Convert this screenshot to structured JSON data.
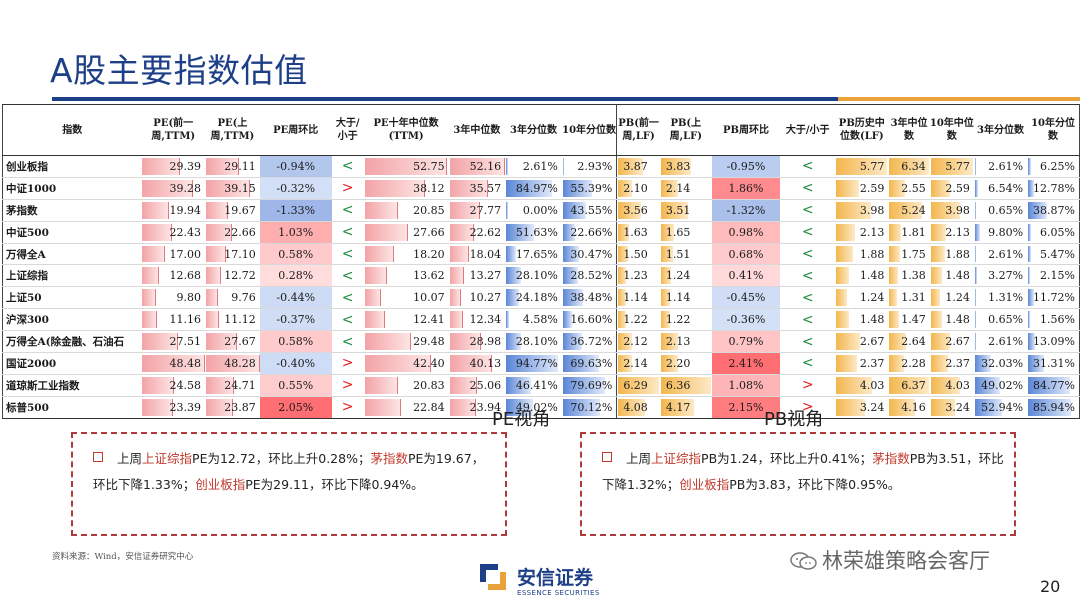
{
  "title": "A股主要指数估值",
  "headers": {
    "name": "指数",
    "pe_prev": "PE(前一周,TTM)",
    "pe_last": "PE(上周,TTM)",
    "pe_chg": "PE周环比",
    "pe_cmp": "大于/小于",
    "pe_10y": "PE十年中位数(TTM)",
    "pe_3y_med": "3年中位数",
    "pe_3y_pct": "3年分位数",
    "pe_10y_pct": "10年分位数",
    "pb_prev": "PB(前一周,LF)",
    "pb_last": "PB(上周,LF)",
    "pb_chg": "PB周环比",
    "pb_cmp": "大于/小于",
    "pb_hist": "PB历史中位数(LF)",
    "pb_3y_med": "3年中位数",
    "pb_10y_med": "10年中位数",
    "pb_3y_pct": "3年分位数",
    "pb_10y_pct": "10年分位数"
  },
  "rows": [
    {
      "name": "创业板指",
      "pe_prev": "29.39",
      "pe_last": "29.11",
      "pe_chg": "-0.94%",
      "pe_cmp": "<",
      "pe_10y": "52.75",
      "pe_3y_med": "52.16",
      "pe_3y_pct": "2.61%",
      "pe_10y_pct": "2.93%",
      "pb_prev": "3.87",
      "pb_last": "3.83",
      "pb_chg": "-0.95%",
      "pb_cmp": "<",
      "pb_hist": "5.77",
      "pb_3y_med": "6.34",
      "pb_10y_med": "5.77",
      "pb_3y_pct": "2.61%",
      "pb_10y_pct": "6.25%"
    },
    {
      "name": "中证1000",
      "pe_prev": "39.28",
      "pe_last": "39.15",
      "pe_chg": "-0.32%",
      "pe_cmp": ">",
      "pe_10y": "38.12",
      "pe_3y_med": "35.57",
      "pe_3y_pct": "84.97%",
      "pe_10y_pct": "55.39%",
      "pb_prev": "2.10",
      "pb_last": "2.14",
      "pb_chg": "1.86%",
      "pb_cmp": "<",
      "pb_hist": "2.59",
      "pb_3y_med": "2.55",
      "pb_10y_med": "2.59",
      "pb_3y_pct": "6.54%",
      "pb_10y_pct": "12.78%"
    },
    {
      "name": "茅指数",
      "pe_prev": "19.94",
      "pe_last": "19.67",
      "pe_chg": "-1.33%",
      "pe_cmp": "<",
      "pe_10y": "20.85",
      "pe_3y_med": "27.77",
      "pe_3y_pct": "0.00%",
      "pe_10y_pct": "43.55%",
      "pb_prev": "3.56",
      "pb_last": "3.51",
      "pb_chg": "-1.32%",
      "pb_cmp": "<",
      "pb_hist": "3.98",
      "pb_3y_med": "5.24",
      "pb_10y_med": "3.98",
      "pb_3y_pct": "0.65%",
      "pb_10y_pct": "38.87%"
    },
    {
      "name": "中证500",
      "pe_prev": "22.43",
      "pe_last": "22.66",
      "pe_chg": "1.03%",
      "pe_cmp": "<",
      "pe_10y": "27.66",
      "pe_3y_med": "22.62",
      "pe_3y_pct": "51.63%",
      "pe_10y_pct": "22.66%",
      "pb_prev": "1.63",
      "pb_last": "1.65",
      "pb_chg": "0.98%",
      "pb_cmp": "<",
      "pb_hist": "2.13",
      "pb_3y_med": "1.81",
      "pb_10y_med": "2.13",
      "pb_3y_pct": "9.80%",
      "pb_10y_pct": "6.05%"
    },
    {
      "name": "万得全A",
      "pe_prev": "17.00",
      "pe_last": "17.10",
      "pe_chg": "0.58%",
      "pe_cmp": "<",
      "pe_10y": "18.20",
      "pe_3y_med": "18.04",
      "pe_3y_pct": "17.65%",
      "pe_10y_pct": "30.47%",
      "pb_prev": "1.50",
      "pb_last": "1.51",
      "pb_chg": "0.68%",
      "pb_cmp": "<",
      "pb_hist": "1.88",
      "pb_3y_med": "1.75",
      "pb_10y_med": "1.88",
      "pb_3y_pct": "2.61%",
      "pb_10y_pct": "5.47%"
    },
    {
      "name": "上证综指",
      "pe_prev": "12.68",
      "pe_last": "12.72",
      "pe_chg": "0.28%",
      "pe_cmp": "<",
      "pe_10y": "13.62",
      "pe_3y_med": "13.27",
      "pe_3y_pct": "28.10%",
      "pe_10y_pct": "28.52%",
      "pb_prev": "1.23",
      "pb_last": "1.24",
      "pb_chg": "0.41%",
      "pb_cmp": "<",
      "pb_hist": "1.48",
      "pb_3y_med": "1.38",
      "pb_10y_med": "1.48",
      "pb_3y_pct": "3.27%",
      "pb_10y_pct": "2.15%"
    },
    {
      "name": "上证50",
      "pe_prev": "9.80",
      "pe_last": "9.76",
      "pe_chg": "-0.44%",
      "pe_cmp": "<",
      "pe_10y": "10.07",
      "pe_3y_med": "10.27",
      "pe_3y_pct": "24.18%",
      "pe_10y_pct": "38.48%",
      "pb_prev": "1.14",
      "pb_last": "1.14",
      "pb_chg": "-0.45%",
      "pb_cmp": "<",
      "pb_hist": "1.24",
      "pb_3y_med": "1.31",
      "pb_10y_med": "1.24",
      "pb_3y_pct": "1.31%",
      "pb_10y_pct": "11.72%"
    },
    {
      "name": "沪深300",
      "pe_prev": "11.16",
      "pe_last": "11.12",
      "pe_chg": "-0.37%",
      "pe_cmp": "<",
      "pe_10y": "12.41",
      "pe_3y_med": "12.34",
      "pe_3y_pct": "4.58%",
      "pe_10y_pct": "16.60%",
      "pb_prev": "1.22",
      "pb_last": "1.22",
      "pb_chg": "-0.36%",
      "pb_cmp": "<",
      "pb_hist": "1.48",
      "pb_3y_med": "1.47",
      "pb_10y_med": "1.48",
      "pb_3y_pct": "0.65%",
      "pb_10y_pct": "1.56%"
    },
    {
      "name": "万得全A(除金融、石油石",
      "pe_prev": "27.51",
      "pe_last": "27.67",
      "pe_chg": "0.58%",
      "pe_cmp": "<",
      "pe_10y": "29.48",
      "pe_3y_med": "28.98",
      "pe_3y_pct": "28.10%",
      "pe_10y_pct": "36.72%",
      "pb_prev": "2.12",
      "pb_last": "2.13",
      "pb_chg": "0.79%",
      "pb_cmp": "<",
      "pb_hist": "2.67",
      "pb_3y_med": "2.64",
      "pb_10y_med": "2.67",
      "pb_3y_pct": "2.61%",
      "pb_10y_pct": "13.09%"
    },
    {
      "name": "国证2000",
      "pe_prev": "48.48",
      "pe_last": "48.28",
      "pe_chg": "-0.40%",
      "pe_cmp": ">",
      "pe_10y": "42.40",
      "pe_3y_med": "40.13",
      "pe_3y_pct": "94.77%",
      "pe_10y_pct": "69.63%",
      "pb_prev": "2.14",
      "pb_last": "2.20",
      "pb_chg": "2.41%",
      "pb_cmp": "<",
      "pb_hist": "2.37",
      "pb_3y_med": "2.28",
      "pb_10y_med": "2.37",
      "pb_3y_pct": "32.03%",
      "pb_10y_pct": "31.31%"
    },
    {
      "name": "道琼斯工业指数",
      "pe_prev": "24.58",
      "pe_last": "24.71",
      "pe_chg": "0.55%",
      "pe_cmp": ">",
      "pe_10y": "20.83",
      "pe_3y_med": "25.06",
      "pe_3y_pct": "46.41%",
      "pe_10y_pct": "79.69%",
      "pb_prev": "6.29",
      "pb_last": "6.36",
      "pb_chg": "1.08%",
      "pb_cmp": ">",
      "pb_hist": "4.03",
      "pb_3y_med": "6.37",
      "pb_10y_med": "4.03",
      "pb_3y_pct": "49.02%",
      "pb_10y_pct": "84.77%"
    },
    {
      "name": "标普500",
      "pe_prev": "23.39",
      "pe_last": "23.87",
      "pe_chg": "2.05%",
      "pe_cmp": ">",
      "pe_10y": "22.84",
      "pe_3y_med": "23.94",
      "pe_3y_pct": "49.02%",
      "pe_10y_pct": "70.12%",
      "pb_prev": "4.08",
      "pb_last": "4.17",
      "pb_chg": "2.15%",
      "pb_cmp": ">",
      "pb_hist": "3.24",
      "pb_3y_med": "4.16",
      "pb_10y_med": "3.24",
      "pb_3y_pct": "52.94%",
      "pb_10y_pct": "85.94%"
    }
  ],
  "colors": {
    "title_blue": "#1d3f87",
    "accent_orange": "#e9a23b",
    "bar_red": "#f3a3a6",
    "bar_blue": "#5b86d6",
    "bar_orange": "#f3b64d",
    "lt_green": "#1f8a3b",
    "gt_red": "#e02020",
    "highlight_red": "#c0392b"
  },
  "pe_section": {
    "label": "PE视角",
    "t1": "上周",
    "h1": "上证综指",
    "t2": "PE为12.72，环比上升0.28%；",
    "h2": "茅指数",
    "t3": "PE为19.67，环比下降1.33%；",
    "h3": "创业板指",
    "t4": "PE为29.11，环比下降0.94%。"
  },
  "pb_section": {
    "label": "PB视角",
    "t1": "上周",
    "h1": "上证综指",
    "t2": "PB为1.24，环比上升0.41%；",
    "h2": "茅指数",
    "t3": "PB为3.51，环比下降1.32%；",
    "h3": "创业板指",
    "t4": "PB为3.83，环比下降0.95%。"
  },
  "source": "资料来源：Wind，安信证券研究中心",
  "logo": {
    "cn": "安信证券",
    "en": "ESSENCE SECURITIES"
  },
  "watermark": "林荣雄策略会客厅",
  "page_number": "20"
}
